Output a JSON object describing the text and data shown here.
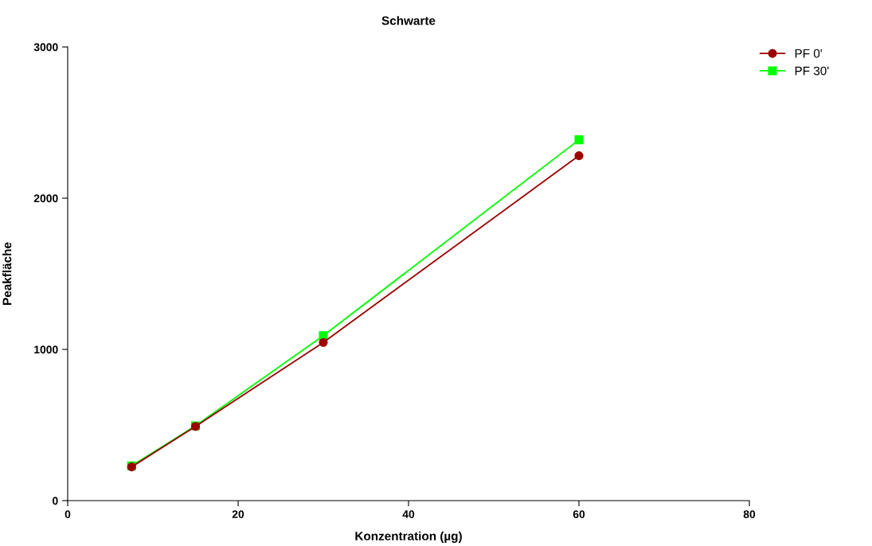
{
  "chart_data": {
    "type": "line",
    "title": "Schwarte",
    "xlabel": "Konzentration (µg)",
    "ylabel": "Peakfläche",
    "x": [
      7.5,
      15,
      30,
      60
    ],
    "series": [
      {
        "name": "PF 0'",
        "color": "#9b0000",
        "marker": "circle",
        "values": [
          223,
          491,
          1046,
          2281
        ]
      },
      {
        "name": "PF 30'",
        "color": "#00ff00",
        "marker": "square",
        "values": [
          230,
          495,
          1091,
          2386
        ]
      }
    ],
    "xlim": [
      0,
      80
    ],
    "xticks": [
      0,
      20,
      40,
      60,
      80
    ],
    "ylim": [
      0,
      3000
    ],
    "yticks": [
      0,
      1000,
      2000,
      3000
    ],
    "grid": false,
    "legend": "top right",
    "line_style": "solid"
  }
}
